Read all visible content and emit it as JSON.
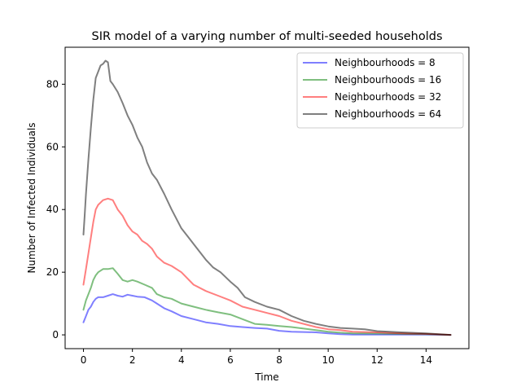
{
  "chart_data": {
    "type": "line",
    "title": "SIR model of a varying number of multi-seeded households",
    "xlabel": "Time",
    "ylabel": "Number of Infected Individuals",
    "xlim": [
      -0.75,
      15.75
    ],
    "ylim": [
      -4.4,
      91.8
    ],
    "xticks": [
      0,
      2,
      4,
      6,
      8,
      10,
      12,
      14
    ],
    "yticks": [
      0,
      20,
      40,
      60,
      80
    ],
    "grid": false,
    "legend_position": "top-right",
    "series": [
      {
        "name": "Neighbourhoods = 8",
        "color": "#0000ff",
        "points": [
          [
            0,
            4
          ],
          [
            0.1,
            6
          ],
          [
            0.2,
            8
          ],
          [
            0.3,
            9
          ],
          [
            0.4,
            10.5
          ],
          [
            0.5,
            11.5
          ],
          [
            0.6,
            12
          ],
          [
            0.8,
            12
          ],
          [
            1,
            12.5
          ],
          [
            1.2,
            13
          ],
          [
            1.4,
            12.5
          ],
          [
            1.6,
            12.2
          ],
          [
            1.8,
            12.8
          ],
          [
            2,
            12.5
          ],
          [
            2.2,
            12.2
          ],
          [
            2.5,
            12
          ],
          [
            2.8,
            11
          ],
          [
            3,
            10
          ],
          [
            3.3,
            8.5
          ],
          [
            3.6,
            7.5
          ],
          [
            4,
            6
          ],
          [
            4.5,
            5
          ],
          [
            5,
            4
          ],
          [
            5.5,
            3.5
          ],
          [
            6,
            2.8
          ],
          [
            6.5,
            2.5
          ],
          [
            7,
            2.2
          ],
          [
            7.5,
            2
          ],
          [
            8,
            1.3
          ],
          [
            8.5,
            1
          ],
          [
            9,
            0.9
          ],
          [
            9.5,
            0.8
          ],
          [
            10,
            0.5
          ],
          [
            10.5,
            0.2
          ],
          [
            11,
            0.1
          ],
          [
            12,
            0.1
          ],
          [
            13,
            0.1
          ],
          [
            14,
            0.1
          ],
          [
            15,
            0
          ]
        ]
      },
      {
        "name": "Neighbourhoods = 16",
        "color": "#008000",
        "points": [
          [
            0,
            8
          ],
          [
            0.1,
            11
          ],
          [
            0.2,
            13
          ],
          [
            0.3,
            15
          ],
          [
            0.4,
            17.5
          ],
          [
            0.5,
            19
          ],
          [
            0.6,
            20
          ],
          [
            0.8,
            21
          ],
          [
            1,
            21
          ],
          [
            1.2,
            21.3
          ],
          [
            1.4,
            19.5
          ],
          [
            1.6,
            17.5
          ],
          [
            1.8,
            17
          ],
          [
            2,
            17.5
          ],
          [
            2.2,
            17
          ],
          [
            2.5,
            16
          ],
          [
            2.8,
            15
          ],
          [
            3,
            13
          ],
          [
            3.3,
            12
          ],
          [
            3.6,
            11.5
          ],
          [
            4,
            10
          ],
          [
            4.5,
            9
          ],
          [
            5,
            8
          ],
          [
            5.5,
            7.2
          ],
          [
            6,
            6.5
          ],
          [
            6.5,
            5
          ],
          [
            7,
            3.5
          ],
          [
            7.5,
            3.2
          ],
          [
            8,
            2.8
          ],
          [
            8.5,
            2.5
          ],
          [
            9,
            2
          ],
          [
            9.5,
            1.5
          ],
          [
            10,
            1
          ],
          [
            10.5,
            0.7
          ],
          [
            11,
            0.5
          ],
          [
            12,
            0.4
          ],
          [
            13,
            0.3
          ],
          [
            14,
            0.2
          ],
          [
            15,
            0
          ]
        ]
      },
      {
        "name": "Neighbourhoods = 32",
        "color": "#ff0000",
        "points": [
          [
            0,
            16
          ],
          [
            0.1,
            21
          ],
          [
            0.2,
            26
          ],
          [
            0.3,
            31
          ],
          [
            0.4,
            36
          ],
          [
            0.5,
            40
          ],
          [
            0.6,
            41.5
          ],
          [
            0.8,
            43
          ],
          [
            1,
            43.5
          ],
          [
            1.2,
            43
          ],
          [
            1.4,
            40
          ],
          [
            1.6,
            38
          ],
          [
            1.8,
            35
          ],
          [
            2,
            33
          ],
          [
            2.2,
            32
          ],
          [
            2.4,
            30
          ],
          [
            2.6,
            29
          ],
          [
            2.8,
            27.5
          ],
          [
            3,
            25
          ],
          [
            3.3,
            23
          ],
          [
            3.6,
            22
          ],
          [
            4,
            20
          ],
          [
            4.5,
            16
          ],
          [
            5,
            14
          ],
          [
            5.5,
            12.5
          ],
          [
            6,
            11
          ],
          [
            6.5,
            9
          ],
          [
            7,
            8
          ],
          [
            7.5,
            7
          ],
          [
            8,
            6
          ],
          [
            8.5,
            4.5
          ],
          [
            9,
            3.5
          ],
          [
            9.5,
            2.5
          ],
          [
            10,
            1.8
          ],
          [
            10.5,
            1.5
          ],
          [
            11,
            1
          ],
          [
            12,
            0.8
          ],
          [
            13,
            0.5
          ],
          [
            14,
            0.3
          ],
          [
            15,
            0
          ]
        ]
      },
      {
        "name": "Neighbourhoods = 64",
        "color": "#000000",
        "points": [
          [
            0,
            32
          ],
          [
            0.05,
            38
          ],
          [
            0.1,
            45
          ],
          [
            0.2,
            56
          ],
          [
            0.3,
            66
          ],
          [
            0.4,
            75
          ],
          [
            0.5,
            82
          ],
          [
            0.6,
            84
          ],
          [
            0.7,
            86
          ],
          [
            0.8,
            86.5
          ],
          [
            0.9,
            87.5
          ],
          [
            1,
            87
          ],
          [
            1.05,
            84
          ],
          [
            1.1,
            81
          ],
          [
            1.2,
            80
          ],
          [
            1.4,
            77.5
          ],
          [
            1.6,
            74
          ],
          [
            1.8,
            70
          ],
          [
            2,
            67
          ],
          [
            2.2,
            63
          ],
          [
            2.4,
            60
          ],
          [
            2.6,
            55
          ],
          [
            2.8,
            51.5
          ],
          [
            3,
            49.5
          ],
          [
            3.3,
            45
          ],
          [
            3.6,
            40
          ],
          [
            4,
            34
          ],
          [
            4.3,
            31
          ],
          [
            4.6,
            28
          ],
          [
            5,
            24
          ],
          [
            5.3,
            21.5
          ],
          [
            5.6,
            20
          ],
          [
            6,
            17
          ],
          [
            6.3,
            15
          ],
          [
            6.6,
            12
          ],
          [
            7,
            10.5
          ],
          [
            7.5,
            9
          ],
          [
            8,
            8
          ],
          [
            8.5,
            6
          ],
          [
            9,
            4.5
          ],
          [
            9.5,
            3.5
          ],
          [
            10,
            2.7
          ],
          [
            10.5,
            2.2
          ],
          [
            11,
            2
          ],
          [
            11.5,
            1.8
          ],
          [
            12,
            1.2
          ],
          [
            13,
            0.8
          ],
          [
            14,
            0.5
          ],
          [
            15,
            0
          ]
        ]
      }
    ]
  }
}
